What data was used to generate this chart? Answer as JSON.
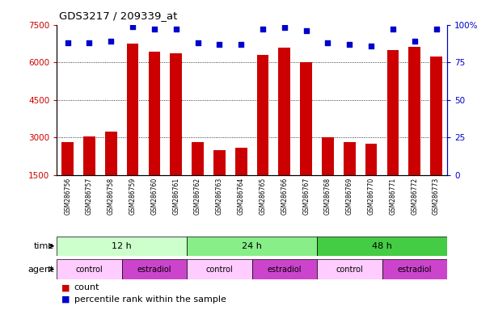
{
  "title": "GDS3217 / 209339_at",
  "samples": [
    "GSM286756",
    "GSM286757",
    "GSM286758",
    "GSM286759",
    "GSM286760",
    "GSM286761",
    "GSM286762",
    "GSM286763",
    "GSM286764",
    "GSM286765",
    "GSM286766",
    "GSM286767",
    "GSM286768",
    "GSM286769",
    "GSM286770",
    "GSM286771",
    "GSM286772",
    "GSM286773"
  ],
  "counts": [
    2820,
    3060,
    3230,
    6760,
    6420,
    6370,
    2810,
    2510,
    2580,
    6310,
    6580,
    6020,
    3010,
    2820,
    2760,
    6480,
    6620,
    6230
  ],
  "percentile_ranks": [
    88,
    88,
    89,
    99,
    97,
    97,
    88,
    87,
    87,
    97,
    98,
    96,
    88,
    87,
    86,
    97,
    89,
    97
  ],
  "bar_color": "#cc0000",
  "dot_color": "#0000cc",
  "left_yticks": [
    1500,
    3000,
    4500,
    6000,
    7500
  ],
  "right_yticks": [
    0,
    25,
    50,
    75,
    100
  ],
  "ylim_left": [
    1500,
    7500
  ],
  "ylim_right": [
    0,
    100
  ],
  "time_colors": [
    "#ccffcc",
    "#88ee88",
    "#44cc44"
  ],
  "time_groups": [
    {
      "label": "12 h",
      "start": 0,
      "end": 6
    },
    {
      "label": "24 h",
      "start": 6,
      "end": 12
    },
    {
      "label": "48 h",
      "start": 12,
      "end": 18
    }
  ],
  "agent_colors": {
    "control": "#ffccff",
    "estradiol": "#cc44cc"
  },
  "agent_groups": [
    {
      "label": "control",
      "start": 0,
      "end": 3
    },
    {
      "label": "estradiol",
      "start": 3,
      "end": 6
    },
    {
      "label": "control",
      "start": 6,
      "end": 9
    },
    {
      "label": "estradiol",
      "start": 9,
      "end": 12
    },
    {
      "label": "control",
      "start": 12,
      "end": 15
    },
    {
      "label": "estradiol",
      "start": 15,
      "end": 18
    }
  ],
  "legend_count_color": "#cc0000",
  "legend_dot_color": "#0000cc",
  "left_tick_color": "#cc0000",
  "right_tick_color": "#0000cc"
}
